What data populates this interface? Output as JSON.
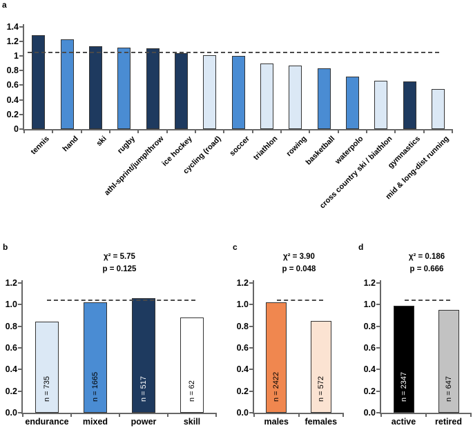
{
  "figure": {
    "background": "#ffffff",
    "description_colors": {
      "dark_navy": "#1e3a5f",
      "medium_blue": "#4a8cd3",
      "light_blue": "#dbe8f5",
      "white_bar": "#ffffff",
      "orange": "#f0874f",
      "light_orange": "#fbe3d2",
      "black_bar": "#000000",
      "gray_bar": "#c2c2c2",
      "axis_gray": "#666666",
      "dashed_line": "#4a4a4a"
    }
  },
  "chart_data": [
    {
      "panel": "a",
      "panel_label": "a",
      "type": "bar",
      "title": "",
      "xlabel": "",
      "ylabel": "",
      "categories": [
        "tennis",
        "hand",
        "ski",
        "rugby",
        "athl-sprint/jump/throw",
        "ice hockey",
        "cycling (road)",
        "soccer",
        "triathlon",
        "rowing",
        "basketball",
        "waterpolo",
        "cross country ski / biathlon",
        "gymnastics",
        "mid & long-dist running"
      ],
      "values": [
        1.28,
        1.23,
        1.13,
        1.11,
        1.1,
        1.04,
        1.01,
        1.0,
        0.9,
        0.87,
        0.83,
        0.72,
        0.66,
        0.65,
        0.55
      ],
      "bar_colors": [
        "#1e3a5f",
        "#4a8cd3",
        "#1e3a5f",
        "#4a8cd3",
        "#1e3a5f",
        "#1e3a5f",
        "#dbe8f5",
        "#4a8cd3",
        "#dbe8f5",
        "#dbe8f5",
        "#4a8cd3",
        "#4a8cd3",
        "#dbe8f5",
        "#1e3a5f",
        "#dbe8f5"
      ],
      "ylim": [
        0,
        1.4
      ],
      "ytick_labels": [
        "0",
        "0.2",
        "0.4",
        "0.6",
        "0.8",
        "1",
        "1.2",
        "1.4"
      ],
      "dashed_line_y": 1.05,
      "grid": false,
      "legend": null
    },
    {
      "panel": "b",
      "panel_label": "b",
      "type": "bar",
      "stats": {
        "chi2": "χ² = 5.75",
        "p": "p = 0.125"
      },
      "categories": [
        "endurance",
        "mixed",
        "power",
        "skill"
      ],
      "values": [
        0.84,
        1.02,
        1.06,
        0.88
      ],
      "bar_labels": [
        "n = 735",
        "n = 1665",
        "n = 517",
        "n = 62"
      ],
      "bar_label_colors": [
        "#000000",
        "#000000",
        "#ffffff",
        "#000000"
      ],
      "bar_colors": [
        "#dbe8f5",
        "#4a8cd3",
        "#1e3a5f",
        "#ffffff"
      ],
      "ylim": [
        0,
        1.2
      ],
      "ytick_labels": [
        "0.0",
        "0.2",
        "0.4",
        "0.6",
        "0.8",
        "1.0",
        "1.2"
      ],
      "dashed_line_y": 1.04,
      "grid": false,
      "legend": null
    },
    {
      "panel": "c",
      "panel_label": "c",
      "type": "bar",
      "stats": {
        "chi2": "χ² = 3.90",
        "p": "p = 0.048"
      },
      "categories": [
        "males",
        "females"
      ],
      "values": [
        1.02,
        0.85
      ],
      "bar_labels": [
        "n = 2422",
        "n = 572"
      ],
      "bar_label_colors": [
        "#000000",
        "#000000"
      ],
      "bar_colors": [
        "#f0874f",
        "#fbe3d2"
      ],
      "ylim": [
        0,
        1.2
      ],
      "ytick_labels": [
        "0.0",
        "0.2",
        "0.4",
        "0.6",
        "0.8",
        "1.0",
        "1.2"
      ],
      "dashed_line_y": 1.04,
      "grid": false,
      "legend": null
    },
    {
      "panel": "d",
      "panel_label": "d",
      "type": "bar",
      "stats": {
        "chi2": "χ² = 0.186",
        "p": "p = 0.666"
      },
      "categories": [
        "active",
        "retired"
      ],
      "values": [
        0.99,
        0.95
      ],
      "bar_labels": [
        "n = 2347",
        "n = 647"
      ],
      "bar_label_colors": [
        "#ffffff",
        "#000000"
      ],
      "bar_colors": [
        "#000000",
        "#c2c2c2"
      ],
      "ylim": [
        0,
        1.2
      ],
      "ytick_labels": [
        "0.0",
        "0.2",
        "0.4",
        "0.6",
        "0.8",
        "1.0",
        "1.2"
      ],
      "dashed_line_y": 1.04,
      "grid": false,
      "legend": null
    }
  ]
}
